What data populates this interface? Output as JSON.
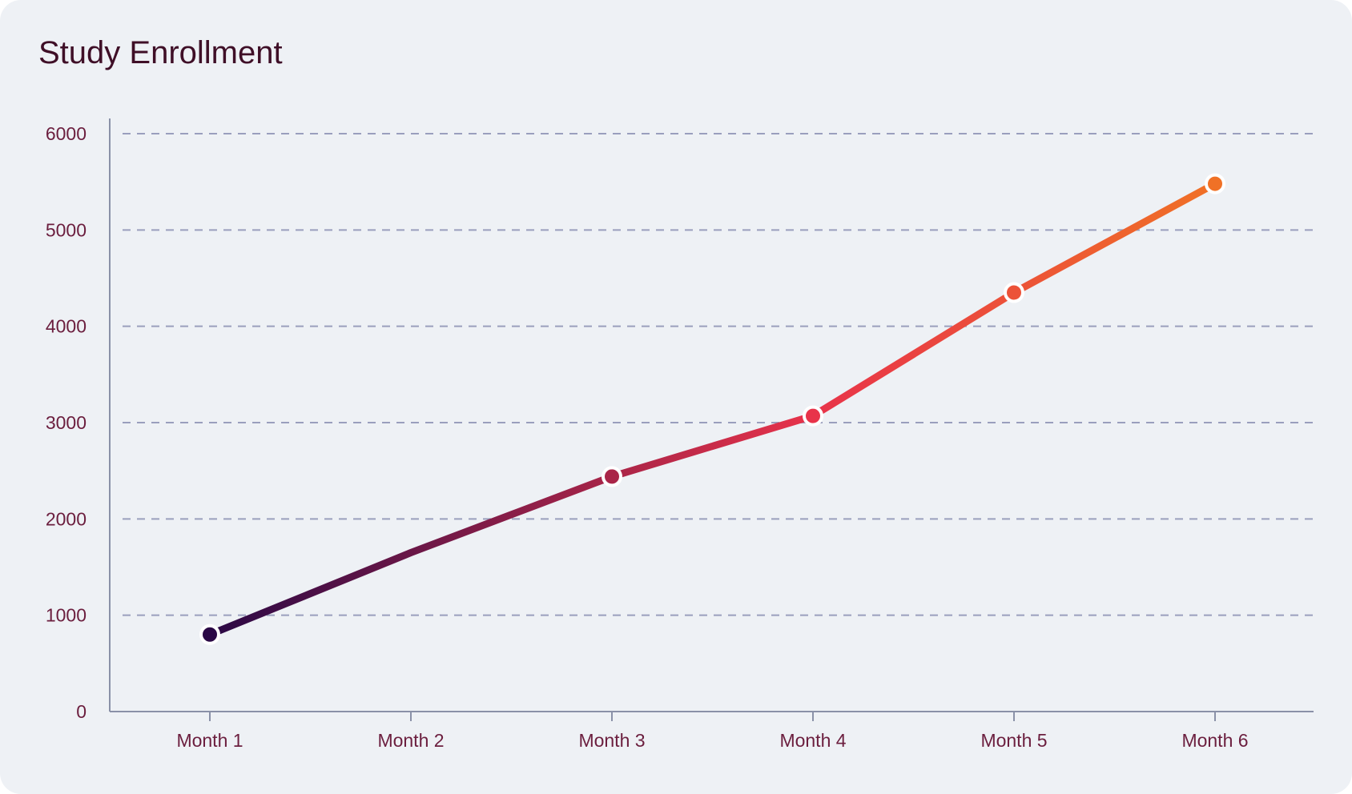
{
  "chart_data": {
    "type": "line",
    "title": "Study Enrollment",
    "xlabel": "",
    "ylabel": "",
    "categories": [
      "Month 1",
      "Month 2",
      "Month 3",
      "Month 4",
      "Month 5",
      "Month 6"
    ],
    "series": [
      {
        "values": [
          800,
          1650,
          2440,
          3070,
          4350,
          5480
        ]
      }
    ],
    "ylim": [
      0,
      6000
    ],
    "yticks": [
      "0",
      "1000",
      "2000",
      "3000",
      "4000",
      "5000",
      "6000"
    ],
    "grid": true,
    "legend": "none",
    "colors": {
      "background": "#eef1f5",
      "gradient_start": "#2a0845",
      "gradient_mid": "#e8334a",
      "gradient_end": "#f07126",
      "grid": "#9a9fbd",
      "axis": "#8a91a8",
      "text": "#6b1e3e",
      "title": "#3f0f27"
    }
  }
}
